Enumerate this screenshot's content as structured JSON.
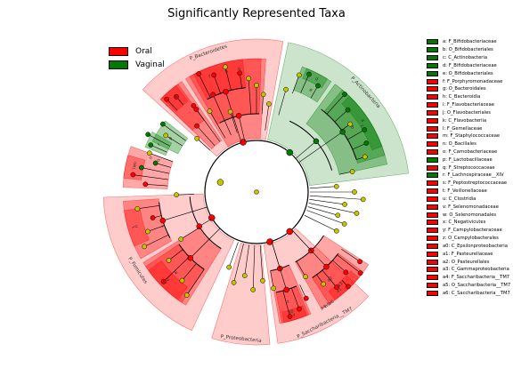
{
  "title": "Significantly Represented Taxa",
  "groups": [
    {
      "name": "Oral",
      "color": "#ff0000"
    },
    {
      "name": "Vaginal",
      "color": "#007a00"
    }
  ],
  "chart_data": {
    "type": "cladogram",
    "title": "Significantly Represented Taxa",
    "legend_placement": "upper-left and right",
    "groups": [
      "Oral",
      "Vaginal"
    ],
    "clades": [
      {
        "id": "a",
        "label": "a: F_Bifidobacteriaceae",
        "group": "Vaginal"
      },
      {
        "id": "b",
        "label": "b: O_Bifidobacteriales",
        "group": "Vaginal"
      },
      {
        "id": "c",
        "label": "c: C_Actinobacteria",
        "group": "Vaginal"
      },
      {
        "id": "d",
        "label": "d: F_Bifidobacteriaceae",
        "group": "Vaginal"
      },
      {
        "id": "e",
        "label": "e: O_Bifidobacteriales",
        "group": "Vaginal"
      },
      {
        "id": "f",
        "label": "f: F_Porphyromonadaceae",
        "group": "Oral"
      },
      {
        "id": "g",
        "label": "g: O_Bacteroidales",
        "group": "Oral"
      },
      {
        "id": "h",
        "label": "h: C_Bacteroidia",
        "group": "Oral"
      },
      {
        "id": "i",
        "label": "i: F_Flavobacteriaceae",
        "group": "Oral"
      },
      {
        "id": "j",
        "label": "j: O_Flavobacteriales",
        "group": "Oral"
      },
      {
        "id": "k",
        "label": "k: C_Flavobacteriia",
        "group": "Oral"
      },
      {
        "id": "l",
        "label": "l: F_Gemellaceae",
        "group": "Oral"
      },
      {
        "id": "m",
        "label": "m: F_Staphylococcaceae",
        "group": "Oral"
      },
      {
        "id": "n",
        "label": "n: O_Bacillales",
        "group": "Oral"
      },
      {
        "id": "o",
        "label": "o: F_Carnobacteriaceae",
        "group": "Oral"
      },
      {
        "id": "p",
        "label": "p: F_Lactobacillaceae",
        "group": "Vaginal"
      },
      {
        "id": "q",
        "label": "q: F_Streptococcaceae",
        "group": "Oral"
      },
      {
        "id": "r",
        "label": "r: F_Lachnospiraceae__XIV",
        "group": "Vaginal"
      },
      {
        "id": "s",
        "label": "s: F_Peptostreptococcaceae",
        "group": "Oral"
      },
      {
        "id": "t",
        "label": "t: F_Veillonellaceae",
        "group": "Oral"
      },
      {
        "id": "u",
        "label": "u: C_Clostridia",
        "group": "Oral"
      },
      {
        "id": "v",
        "label": "v: F_Selenomonadaceae",
        "group": "Oral"
      },
      {
        "id": "w",
        "label": "w: O_Selenomonadales",
        "group": "Oral"
      },
      {
        "id": "x",
        "label": "x: C_Negativicutes",
        "group": "Oral"
      },
      {
        "id": "y",
        "label": "y: F_Campylobacteraceae",
        "group": "Oral"
      },
      {
        "id": "z",
        "label": "z: O_Campylobacterales",
        "group": "Oral"
      },
      {
        "id": "a0",
        "label": "a0: C_Epsilonproteobacteria",
        "group": "Oral"
      },
      {
        "id": "a1",
        "label": "a1: F_Pasteurellaceae",
        "group": "Oral"
      },
      {
        "id": "a2",
        "label": "a2: O_Pasteurellales",
        "group": "Oral"
      },
      {
        "id": "a3",
        "label": "a3: C_Gammaproteobacteria",
        "group": "Oral"
      },
      {
        "id": "a4",
        "label": "a4: F_Saccharibacteria__TM7",
        "group": "Oral"
      },
      {
        "id": "a5",
        "label": "a5: O_Saccharibacteria__TM7",
        "group": "Oral"
      },
      {
        "id": "a6",
        "label": "a6: C_Saccharibacteria__TM7",
        "group": "Oral"
      }
    ],
    "phyla": [
      {
        "label": "P_Bacteroidetes",
        "group": "Oral"
      },
      {
        "label": "P_Actinobacteria",
        "group": "Vaginal"
      },
      {
        "label": "P_Firmicutes",
        "group": "Oral"
      },
      {
        "label": "P_Proteobacteria",
        "group": "Oral"
      },
      {
        "label": "P_Saccharibacteria__TM7",
        "group": "Oral"
      }
    ]
  }
}
